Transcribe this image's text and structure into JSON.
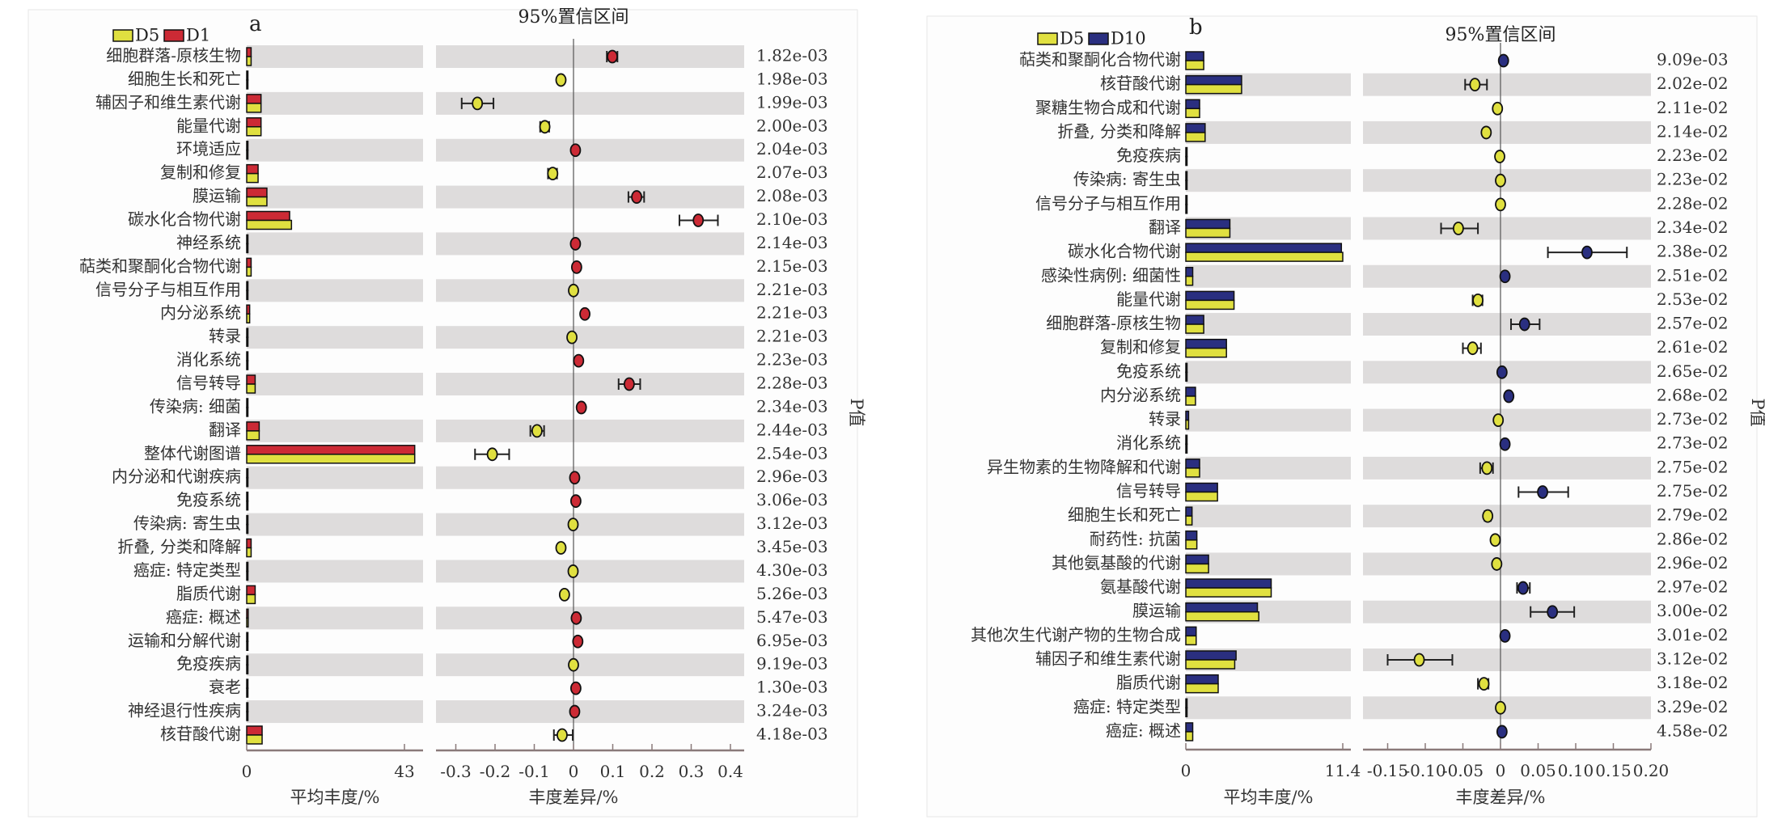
{
  "chart_data": [
    {
      "type": "bar+errorbar",
      "panel_label": "a",
      "title": "95%置信区间",
      "xlabel_left": "平均丰度/%",
      "xlabel_right": "丰度差异/%",
      "p_label": "P值",
      "series": [
        {
          "name": "D5",
          "color": "#e0e040"
        },
        {
          "name": "D1",
          "color": "#cc2a35"
        }
      ],
      "abundance_ticks": [
        "0",
        "43"
      ],
      "abundance_tick_values": [
        0,
        43
      ],
      "diff_ticks": [
        "-0.3",
        "-0.2",
        "-0.1",
        "0",
        "0.1",
        "0.2",
        "0.3",
        "0.4"
      ],
      "diff_tick_values": [
        -0.3,
        -0.2,
        -0.1,
        0,
        0.1,
        0.2,
        0.3,
        0.4
      ],
      "rows": [
        {
          "label": "细胞群落-原核生物",
          "D5": 1.2,
          "other": 1.2,
          "diff": 0.099,
          "ci": [
            0.085,
            0.112
          ],
          "p": "1.82e-03"
        },
        {
          "label": "细胞生长和死亡",
          "D5": 0.3,
          "other": 0.3,
          "diff": -0.032,
          "ci": [
            -0.036,
            -0.028
          ],
          "p": "1.98e-03"
        },
        {
          "label": "辅因子和维生素代谢",
          "D5": 3.9,
          "other": 3.9,
          "diff": -0.245,
          "ci": [
            -0.285,
            -0.204
          ],
          "p": "1.99e-03"
        },
        {
          "label": "能量代谢",
          "D5": 3.9,
          "other": 3.9,
          "diff": -0.073,
          "ci": [
            -0.085,
            -0.062
          ],
          "p": "2.00e-03"
        },
        {
          "label": "环境适应",
          "D5": 0.2,
          "other": 0.2,
          "diff": 0.005,
          "ci": [
            0.002,
            0.008
          ],
          "p": "2.04e-03"
        },
        {
          "label": "复制和修复",
          "D5": 3.1,
          "other": 3.1,
          "diff": -0.053,
          "ci": [
            -0.065,
            -0.042
          ],
          "p": "2.07e-03"
        },
        {
          "label": "膜运输",
          "D5": 5.5,
          "other": 5.5,
          "diff": 0.161,
          "ci": [
            0.14,
            0.18
          ],
          "p": "2.08e-03"
        },
        {
          "label": "碳水化合物代谢",
          "D5": 12.2,
          "other": 11.7,
          "diff": 0.318,
          "ci": [
            0.27,
            0.368
          ],
          "p": "2.10e-03"
        },
        {
          "label": "神经系统",
          "D5": 0.2,
          "other": 0.2,
          "diff": 0.005,
          "ci": [
            0.002,
            0.008
          ],
          "p": "2.14e-03"
        },
        {
          "label": "萜类和聚酮化合物代谢",
          "D5": 1.2,
          "other": 1.2,
          "diff": 0.008,
          "ci": [
            0.005,
            0.011
          ],
          "p": "2.15e-03"
        },
        {
          "label": "信号分子与相互作用",
          "D5": 0.2,
          "other": 0.2,
          "diff": 0.0,
          "ci": [
            -0.002,
            0.002
          ],
          "p": "2.21e-03"
        },
        {
          "label": "内分泌系统",
          "D5": 0.8,
          "other": 0.8,
          "diff": 0.029,
          "ci": [
            0.025,
            0.033
          ],
          "p": "2.21e-03"
        },
        {
          "label": "转录",
          "D5": 0.3,
          "other": 0.3,
          "diff": -0.004,
          "ci": [
            -0.007,
            -0.001
          ],
          "p": "2.21e-03"
        },
        {
          "label": "消化系统",
          "D5": 0.2,
          "other": 0.2,
          "diff": 0.013,
          "ci": [
            0.01,
            0.016
          ],
          "p": "2.23e-03"
        },
        {
          "label": "信号转导",
          "D5": 2.3,
          "other": 2.3,
          "diff": 0.142,
          "ci": [
            0.115,
            0.17
          ],
          "p": "2.28e-03"
        },
        {
          "label": "传染病: 细菌",
          "D5": 0.3,
          "other": 0.3,
          "diff": 0.02,
          "ci": [
            0.017,
            0.023
          ],
          "p": "2.34e-03"
        },
        {
          "label": "翻译",
          "D5": 3.4,
          "other": 3.4,
          "diff": -0.093,
          "ci": [
            -0.11,
            -0.075
          ],
          "p": "2.44e-03"
        },
        {
          "label": "整体代谢图谱",
          "D5": 45.8,
          "other": 45.8,
          "diff": -0.207,
          "ci": [
            -0.251,
            -0.164
          ],
          "p": "2.54e-03"
        },
        {
          "label": "内分泌和代谢疾病",
          "D5": 0.2,
          "other": 0.2,
          "diff": 0.003,
          "ci": [
            0.0,
            0.006
          ],
          "p": "2.96e-03"
        },
        {
          "label": "免疫系统",
          "D5": 0.2,
          "other": 0.2,
          "diff": 0.006,
          "ci": [
            0.003,
            0.009
          ],
          "p": "3.06e-03"
        },
        {
          "label": "传染病: 寄生虫",
          "D5": 0.2,
          "other": 0.2,
          "diff": -0.001,
          "ci": [
            -0.004,
            0.002
          ],
          "p": "3.12e-03"
        },
        {
          "label": "折叠, 分类和降解",
          "D5": 1.2,
          "other": 1.2,
          "diff": -0.032,
          "ci": [
            -0.036,
            -0.028
          ],
          "p": "3.45e-03"
        },
        {
          "label": "癌症: 特定类型",
          "D5": 0.2,
          "other": 0.2,
          "diff": -0.001,
          "ci": [
            -0.004,
            0.002
          ],
          "p": "4.30e-03"
        },
        {
          "label": "脂质代谢",
          "D5": 2.3,
          "other": 2.3,
          "diff": -0.023,
          "ci": [
            -0.027,
            -0.019
          ],
          "p": "5.26e-03"
        },
        {
          "label": "癌症: 概述",
          "D5": 0.4,
          "other": 0.4,
          "diff": 0.007,
          "ci": [
            0.004,
            0.01
          ],
          "p": "5.47e-03"
        },
        {
          "label": "运输和分解代谢",
          "D5": 0.2,
          "other": 0.2,
          "diff": 0.011,
          "ci": [
            0.008,
            0.014
          ],
          "p": "6.95e-03"
        },
        {
          "label": "免疫疾病",
          "D5": 0.2,
          "other": 0.2,
          "diff": 0.0,
          "ci": [
            -0.002,
            0.002
          ],
          "p": "9.19e-03"
        },
        {
          "label": "衰老",
          "D5": 0.2,
          "other": 0.2,
          "diff": 0.006,
          "ci": [
            0.003,
            0.009
          ],
          "p": "1.30e-03"
        },
        {
          "label": "神经退行性疾病",
          "D5": 0.2,
          "other": 0.2,
          "diff": 0.003,
          "ci": [
            0.0,
            0.006
          ],
          "p": "3.24e-03"
        },
        {
          "label": "核苷酸代谢",
          "D5": 4.2,
          "other": 4.2,
          "diff": -0.029,
          "ci": [
            -0.05,
            -0.002
          ],
          "p": "4.18e-03"
        }
      ]
    },
    {
      "type": "bar+errorbar",
      "panel_label": "b",
      "title": "95%置信区间",
      "xlabel_left": "平均丰度/%",
      "xlabel_right": "丰度差异/%",
      "p_label": "P值",
      "series": [
        {
          "name": "D5",
          "color": "#e0e040"
        },
        {
          "name": "D10",
          "color": "#2a2f80"
        }
      ],
      "abundance_ticks": [
        "0",
        "11.4"
      ],
      "abundance_tick_values": [
        0,
        11.4
      ],
      "diff_ticks": [
        "-0.15",
        "-0.10",
        "-0.05",
        "0",
        "0.05",
        "0.10",
        "0.15",
        "0.20"
      ],
      "diff_tick_values": [
        -0.15,
        -0.1,
        -0.05,
        0,
        0.05,
        0.1,
        0.15,
        0.2
      ],
      "rows": [
        {
          "label": "萜类和聚酮化合物代谢",
          "D5": 1.3,
          "other": 1.3,
          "diff": 0.004,
          "ci": [
            0.002,
            0.006
          ],
          "p": "9.09e-03"
        },
        {
          "label": "核苷酸代谢",
          "D5": 4.05,
          "other": 4.05,
          "diff": -0.034,
          "ci": [
            -0.047,
            -0.018
          ],
          "p": "2.02e-02"
        },
        {
          "label": "聚糖生物合成和代谢",
          "D5": 1.0,
          "other": 1.0,
          "diff": -0.004,
          "ci": [
            -0.006,
            -0.002
          ],
          "p": "2.11e-02"
        },
        {
          "label": "折叠, 分类和降解",
          "D5": 1.4,
          "other": 1.4,
          "diff": -0.019,
          "ci": [
            -0.022,
            -0.016
          ],
          "p": "2.14e-02"
        },
        {
          "label": "免疫疾病",
          "D5": 0.05,
          "other": 0.05,
          "diff": -0.001,
          "ci": [
            -0.002,
            0.0
          ],
          "p": "2.23e-02"
        },
        {
          "label": "传染病: 寄生虫",
          "D5": 0.05,
          "other": 0.05,
          "diff": 0.0,
          "ci": [
            -0.001,
            0.001
          ],
          "p": "2.23e-02"
        },
        {
          "label": "信号分子与相互作用",
          "D5": 0.05,
          "other": 0.05,
          "diff": 0.0,
          "ci": [
            -0.001,
            0.001
          ],
          "p": "2.28e-02"
        },
        {
          "label": "翻译",
          "D5": 3.2,
          "other": 3.2,
          "diff": -0.056,
          "ci": [
            -0.079,
            -0.03
          ],
          "p": "2.34e-02"
        },
        {
          "label": "碳水化合物代谢",
          "D5": 11.4,
          "other": 11.3,
          "diff": 0.115,
          "ci": [
            0.063,
            0.168
          ],
          "p": "2.38e-02"
        },
        {
          "label": "感染性病例: 细菌性",
          "D5": 0.5,
          "other": 0.5,
          "diff": 0.006,
          "ci": [
            0.004,
            0.008
          ],
          "p": "2.51e-02"
        },
        {
          "label": "能量代谢",
          "D5": 3.5,
          "other": 3.5,
          "diff": -0.03,
          "ci": [
            -0.037,
            -0.024
          ],
          "p": "2.53e-02"
        },
        {
          "label": "细胞群落-原核生物",
          "D5": 1.3,
          "other": 1.3,
          "diff": 0.032,
          "ci": [
            0.014,
            0.052
          ],
          "p": "2.57e-02"
        },
        {
          "label": "复制和修复",
          "D5": 2.95,
          "other": 2.95,
          "diff": -0.037,
          "ci": [
            -0.05,
            -0.026
          ],
          "p": "2.61e-02"
        },
        {
          "label": "免疫系统",
          "D5": 0.05,
          "other": 0.05,
          "diff": 0.002,
          "ci": [
            0.001,
            0.003
          ],
          "p": "2.65e-02"
        },
        {
          "label": "内分泌系统",
          "D5": 0.7,
          "other": 0.7,
          "diff": 0.011,
          "ci": [
            0.009,
            0.013
          ],
          "p": "2.68e-02"
        },
        {
          "label": "转录",
          "D5": 0.2,
          "other": 0.2,
          "diff": -0.003,
          "ci": [
            -0.004,
            -0.002
          ],
          "p": "2.73e-02"
        },
        {
          "label": "消化系统",
          "D5": 0.05,
          "other": 0.05,
          "diff": 0.006,
          "ci": [
            0.005,
            0.007
          ],
          "p": "2.73e-02"
        },
        {
          "label": "异生物素的生物降解和代谢",
          "D5": 1.0,
          "other": 1.0,
          "diff": -0.018,
          "ci": [
            -0.027,
            -0.01
          ],
          "p": "2.75e-02"
        },
        {
          "label": "信号转导",
          "D5": 2.3,
          "other": 2.3,
          "diff": 0.056,
          "ci": [
            0.024,
            0.09
          ],
          "p": "2.75e-02"
        },
        {
          "label": "细胞生长和死亡",
          "D5": 0.45,
          "other": 0.45,
          "diff": -0.017,
          "ci": [
            -0.021,
            -0.013
          ],
          "p": "2.79e-02"
        },
        {
          "label": "耐药性: 抗菌",
          "D5": 0.8,
          "other": 0.8,
          "diff": -0.007,
          "ci": [
            -0.009,
            -0.005
          ],
          "p": "2.86e-02"
        },
        {
          "label": "其他氨基酸的代谢",
          "D5": 1.65,
          "other": 1.65,
          "diff": -0.005,
          "ci": [
            -0.007,
            -0.003
          ],
          "p": "2.96e-02"
        },
        {
          "label": "氨基酸代谢",
          "D5": 6.2,
          "other": 6.2,
          "diff": 0.03,
          "ci": [
            0.022,
            0.039
          ],
          "p": "2.97e-02"
        },
        {
          "label": "膜运输",
          "D5": 5.3,
          "other": 5.2,
          "diff": 0.069,
          "ci": [
            0.04,
            0.098
          ],
          "p": "3.00e-02"
        },
        {
          "label": "其他次生代谢产物的生物合成",
          "D5": 0.75,
          "other": 0.75,
          "diff": 0.006,
          "ci": [
            0.004,
            0.008
          ],
          "p": "3.01e-02"
        },
        {
          "label": "辅因子和维生素代谢",
          "D5": 3.55,
          "other": 3.65,
          "diff": -0.108,
          "ci": [
            -0.15,
            -0.064
          ],
          "p": "3.12e-02"
        },
        {
          "label": "脂质代谢",
          "D5": 2.35,
          "other": 2.35,
          "diff": -0.022,
          "ci": [
            -0.03,
            -0.016
          ],
          "p": "3.18e-02"
        },
        {
          "label": "癌症: 特定类型",
          "D5": 0.05,
          "other": 0.05,
          "diff": 0.0,
          "ci": [
            -0.001,
            0.001
          ],
          "p": "3.29e-02"
        },
        {
          "label": "癌症: 概述",
          "D5": 0.5,
          "other": 0.5,
          "diff": 0.002,
          "ci": [
            0.001,
            0.003
          ],
          "p": "4.58e-02"
        }
      ]
    }
  ]
}
